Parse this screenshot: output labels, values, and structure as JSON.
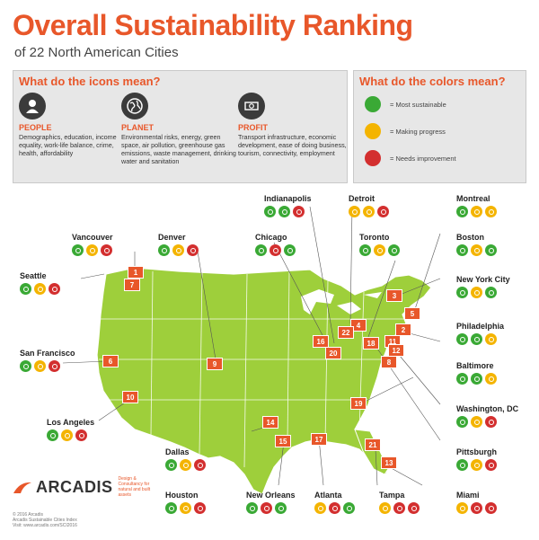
{
  "header": {
    "title": "Overall Sustainability Ranking",
    "subtitle": "of 22 North American Cities"
  },
  "colors": {
    "accent": "#e8572a",
    "green": "#3aa935",
    "yellow": "#f4b400",
    "red": "#d32f2f",
    "land": "#9ecf3b"
  },
  "icons_panel": {
    "heading": "What do the icons mean?",
    "categories": [
      {
        "name": "PEOPLE",
        "icon": "person-icon",
        "description": "Demographics, education, income equality, work-life balance, crime, health, affordability"
      },
      {
        "name": "PLANET",
        "icon": "globe-icon",
        "description": "Environmental risks, energy, green space, air pollution, greenhouse gas emissions, waste management, drinking water and sanitation"
      },
      {
        "name": "PROFIT",
        "icon": "money-icon",
        "description": "Transport infrastructure, economic development, ease of doing business, tourism, connectivity, employment"
      }
    ]
  },
  "colors_panel": {
    "heading": "What do the colors mean?",
    "items": [
      {
        "color": "green",
        "label": "= Most sustainable"
      },
      {
        "color": "yellow",
        "label": "= Making progress"
      },
      {
        "color": "red",
        "label": "= Needs improvement"
      }
    ]
  },
  "cities": [
    {
      "name": "Indianapolis",
      "rank": "20",
      "ratings": [
        "green",
        "green",
        "red"
      ]
    },
    {
      "name": "Detroit",
      "rank": "22",
      "ratings": [
        "yellow",
        "yellow",
        "red"
      ]
    },
    {
      "name": "Montreal",
      "rank": "5",
      "ratings": [
        "green",
        "yellow",
        "yellow"
      ]
    },
    {
      "name": "Vancouver",
      "rank": "1",
      "ratings": [
        "green",
        "yellow",
        "red"
      ]
    },
    {
      "name": "Denver",
      "rank": "9",
      "ratings": [
        "green",
        "yellow",
        "red"
      ]
    },
    {
      "name": "Chicago",
      "rank": "16",
      "ratings": [
        "green",
        "red",
        "green"
      ]
    },
    {
      "name": "Toronto",
      "rank": "4",
      "ratings": [
        "green",
        "yellow",
        "green"
      ]
    },
    {
      "name": "Boston",
      "rank": "3",
      "ratings": [
        "green",
        "yellow",
        "green"
      ]
    },
    {
      "name": "Seattle",
      "rank": "7",
      "ratings": [
        "green",
        "yellow",
        "red"
      ]
    },
    {
      "name": "New York City",
      "rank": "2",
      "ratings": [
        "green",
        "yellow",
        "green"
      ]
    },
    {
      "name": "Philadelphia",
      "rank": "11",
      "ratings": [
        "green",
        "green",
        "yellow"
      ]
    },
    {
      "name": "San Francisco",
      "rank": "6",
      "ratings": [
        "green",
        "yellow",
        "red"
      ]
    },
    {
      "name": "Baltimore",
      "rank": "12",
      "ratings": [
        "green",
        "green",
        "yellow"
      ]
    },
    {
      "name": "Washington, DC",
      "rank": "8",
      "ratings": [
        "green",
        "yellow",
        "red"
      ]
    },
    {
      "name": "Los Angeles",
      "rank": "10",
      "ratings": [
        "green",
        "yellow",
        "red"
      ]
    },
    {
      "name": "Pittsburgh",
      "rank": "18",
      "ratings": [
        "green",
        "yellow",
        "red"
      ]
    },
    {
      "name": "Dallas",
      "rank": "15",
      "ratings": [
        "green",
        "yellow",
        "red"
      ]
    },
    {
      "name": "Houston",
      "rank": "14",
      "ratings": [
        "green",
        "yellow",
        "red"
      ]
    },
    {
      "name": "New Orleans",
      "rank": "17",
      "ratings": [
        "green",
        "red",
        "green"
      ]
    },
    {
      "name": "Atlanta",
      "rank": "19",
      "ratings": [
        "yellow",
        "red",
        "green"
      ]
    },
    {
      "name": "Tampa",
      "rank": "21",
      "ratings": [
        "yellow",
        "red",
        "red"
      ]
    },
    {
      "name": "Miami",
      "rank": "13",
      "ratings": [
        "yellow",
        "red",
        "red"
      ]
    }
  ],
  "footer": {
    "logo": "ARCADIS",
    "tagline": "Design & Consultancy for natural and built assets",
    "notes": [
      "© 2016 Arcadis",
      "Arcadis Sustainable Cities Index",
      "Visit: www.arcadis.com/SCI2016"
    ]
  }
}
